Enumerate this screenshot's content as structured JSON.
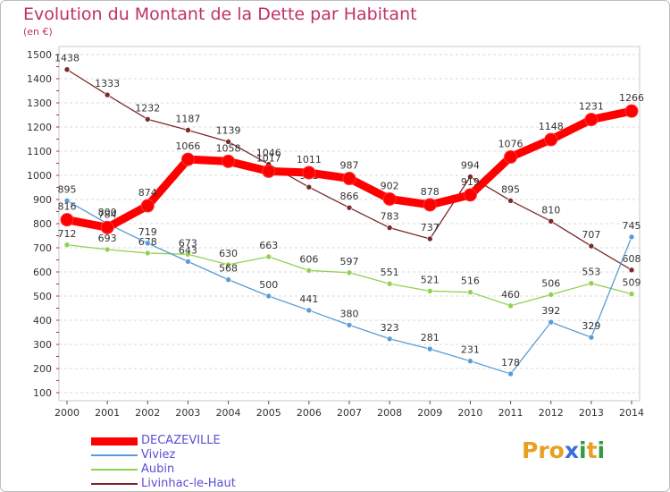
{
  "header": {
    "title": "Evolution du Montant de la Dette par Habitant",
    "unit": "(en €)"
  },
  "logo": {
    "text": "Proxiti",
    "letters": [
      "P",
      "r",
      "o",
      "x",
      "i",
      "t",
      "i"
    ],
    "colors": [
      "#e8a020",
      "#e8a020",
      "#e8a020",
      "#3a6fd8",
      "#2e9e3e",
      "#e8a020",
      "#2e9e3e"
    ]
  },
  "chart_data": {
    "type": "line",
    "title": "Evolution du Montant de la Dette par Habitant",
    "xlabel": "",
    "ylabel": "(en €)",
    "categories": [
      "2000",
      "2001",
      "2002",
      "2003",
      "2004",
      "2005",
      "2006",
      "2007",
      "2008",
      "2009",
      "2010",
      "2011",
      "2012",
      "2013",
      "2014"
    ],
    "ylim": [
      100,
      1500
    ],
    "yticks": [
      100,
      200,
      300,
      400,
      500,
      600,
      700,
      800,
      900,
      1000,
      1100,
      1200,
      1300,
      1400,
      1500
    ],
    "grid": "horizontal dashed",
    "legend_position": "bottom-left",
    "series": [
      {
        "name": "DECAZEVILLE",
        "color": "#ff0000",
        "values": [
          816,
          784,
          874,
          1066,
          1058,
          1017,
          1011,
          987,
          902,
          878,
          919,
          1076,
          1148,
          1231,
          1266
        ],
        "labels": [
          "816",
          "784",
          "874",
          "1066",
          "1058",
          "1017",
          "1011",
          "987",
          "902",
          "878",
          "919",
          "1076",
          "1148",
          "1231",
          "1266"
        ]
      },
      {
        "name": "Viviez",
        "color": "#5b9bd5",
        "values": [
          895,
          800,
          719,
          643,
          568,
          500,
          441,
          380,
          323,
          281,
          231,
          178,
          392,
          329,
          745
        ],
        "labels": [
          "895",
          "800",
          "719",
          "643",
          "568",
          "500",
          "441",
          "380",
          "323",
          "281",
          "231",
          "178",
          "392",
          "329",
          "745"
        ]
      },
      {
        "name": "Aubin",
        "color": "#92d050",
        "values": [
          712,
          693,
          678,
          673,
          630,
          663,
          606,
          597,
          551,
          521,
          516,
          460,
          506,
          553,
          509
        ],
        "labels": [
          "712",
          "693",
          "678",
          "673",
          "630",
          "663",
          "606",
          "597",
          "551",
          "521",
          "516",
          "460",
          "506",
          "553",
          "509"
        ]
      },
      {
        "name": "Livinhac-le-Haut",
        "color": "#7a2a2a",
        "values": [
          1438,
          1333,
          1232,
          1187,
          1139,
          1046,
          951,
          866,
          783,
          737,
          994,
          895,
          810,
          707,
          608
        ],
        "labels": [
          "1438",
          "1333",
          "1232",
          "1187",
          "1139",
          "1046",
          "951",
          "866",
          "783",
          "737",
          "994",
          "895",
          "810",
          "707",
          "608"
        ]
      }
    ]
  }
}
